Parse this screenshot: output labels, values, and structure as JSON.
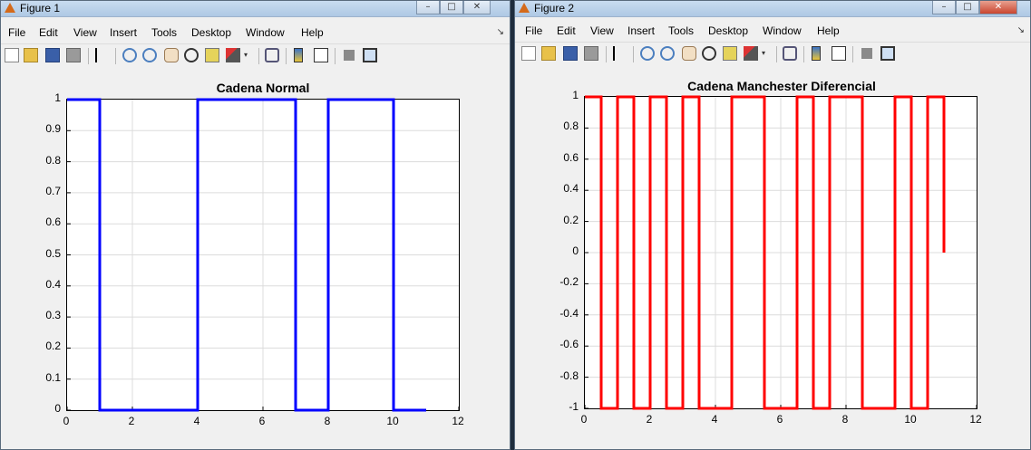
{
  "figure1": {
    "title": "Figure 1",
    "menu": [
      "File",
      "Edit",
      "View",
      "Insert",
      "Tools",
      "Desktop",
      "Window",
      "Help"
    ],
    "window_controls": {
      "minimize": "–",
      "maximize": "□",
      "close": "✕"
    },
    "dock_glyph": "↘",
    "chart_data": {
      "type": "line",
      "title": "Cadena Normal",
      "xlim": [
        0,
        12
      ],
      "ylim": [
        0,
        1
      ],
      "xticks": [
        "0",
        "2",
        "4",
        "6",
        "8",
        "10",
        "12"
      ],
      "yticks": [
        "0",
        "0.1",
        "0.2",
        "0.3",
        "0.4",
        "0.5",
        "0.6",
        "0.7",
        "0.8",
        "0.9",
        "1"
      ],
      "grid": true,
      "line_color": "#0000ff",
      "series": [
        {
          "x": [
            0,
            1,
            1,
            4,
            4,
            7,
            7,
            8,
            8,
            10,
            10,
            11
          ],
          "y": [
            1,
            1,
            0,
            0,
            1,
            1,
            0,
            0,
            1,
            1,
            0,
            0
          ]
        }
      ]
    }
  },
  "figure2": {
    "title": "Figure 2",
    "menu": [
      "File",
      "Edit",
      "View",
      "Insert",
      "Tools",
      "Desktop",
      "Window",
      "Help"
    ],
    "window_controls": {
      "minimize": "–",
      "maximize": "□",
      "close": "✕"
    },
    "dock_glyph": "↘",
    "chart_data": {
      "type": "line",
      "title": "Cadena Manchester Diferencial",
      "xlim": [
        0,
        12
      ],
      "ylim": [
        -1,
        1
      ],
      "xticks": [
        "0",
        "2",
        "4",
        "6",
        "8",
        "10",
        "12"
      ],
      "yticks": [
        "-1",
        "-0.8",
        "-0.6",
        "-0.4",
        "-0.2",
        "0",
        "0.2",
        "0.4",
        "0.6",
        "0.8",
        "1"
      ],
      "grid": true,
      "line_color": "#ff0000",
      "series": [
        {
          "x": [
            0,
            0.5,
            0.5,
            1,
            1,
            1.5,
            1.5,
            2,
            2,
            2.5,
            2.5,
            3,
            3,
            3.5,
            3.5,
            4.5,
            4.5,
            5.5,
            5.5,
            6.5,
            6.5,
            7,
            7,
            7.5,
            7.5,
            8.5,
            8.5,
            9.5,
            9.5,
            10,
            10,
            10.5,
            10.5,
            11,
            11
          ],
          "y": [
            1,
            1,
            -1,
            -1,
            1,
            1,
            -1,
            -1,
            1,
            1,
            -1,
            -1,
            1,
            1,
            -1,
            -1,
            1,
            1,
            -1,
            -1,
            1,
            1,
            -1,
            -1,
            1,
            1,
            -1,
            -1,
            1,
            1,
            -1,
            -1,
            1,
            1,
            0
          ]
        }
      ]
    }
  }
}
